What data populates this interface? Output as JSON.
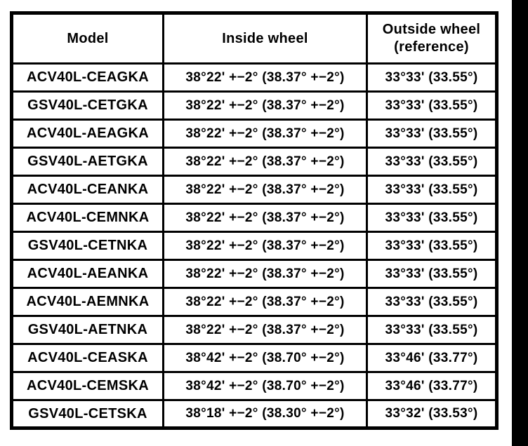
{
  "page": {
    "background_color": "#ffffff",
    "scan_bar_color": "#000000",
    "table_border_color": "#000000"
  },
  "table": {
    "columns": [
      {
        "label": "Model"
      },
      {
        "label": "Inside wheel"
      },
      {
        "label": "Outside wheel (reference)"
      }
    ],
    "rows": [
      {
        "model": "ACV40L-CEAGKA",
        "inside_wheel": "38°22' +−2° (38.37° +−2°)",
        "outside_wheel": "33°33' (33.55°)"
      },
      {
        "model": "GSV40L-CETGKA",
        "inside_wheel": "38°22' +−2° (38.37° +−2°)",
        "outside_wheel": "33°33' (33.55°)"
      },
      {
        "model": "ACV40L-AEAGKA",
        "inside_wheel": "38°22' +−2° (38.37° +−2°)",
        "outside_wheel": "33°33' (33.55°)"
      },
      {
        "model": "GSV40L-AETGKA",
        "inside_wheel": "38°22' +−2° (38.37° +−2°)",
        "outside_wheel": "33°33' (33.55°)"
      },
      {
        "model": "ACV40L-CEANKA",
        "inside_wheel": "38°22' +−2° (38.37° +−2°)",
        "outside_wheel": "33°33' (33.55°)"
      },
      {
        "model": "ACV40L-CEMNKA",
        "inside_wheel": "38°22' +−2° (38.37° +−2°)",
        "outside_wheel": "33°33' (33.55°)"
      },
      {
        "model": "GSV40L-CETNKA",
        "inside_wheel": "38°22' +−2° (38.37° +−2°)",
        "outside_wheel": "33°33' (33.55°)"
      },
      {
        "model": "ACV40L-AEANKA",
        "inside_wheel": "38°22' +−2° (38.37° +−2°)",
        "outside_wheel": "33°33' (33.55°)"
      },
      {
        "model": "ACV40L-AEMNKA",
        "inside_wheel": "38°22' +−2° (38.37° +−2°)",
        "outside_wheel": "33°33' (33.55°)"
      },
      {
        "model": "GSV40L-AETNKA",
        "inside_wheel": "38°22' +−2° (38.37° +−2°)",
        "outside_wheel": "33°33' (33.55°)"
      },
      {
        "model": "ACV40L-CEASKA",
        "inside_wheel": "38°42' +−2° (38.70° +−2°)",
        "outside_wheel": "33°46' (33.77°)"
      },
      {
        "model": "ACV40L-CEMSKA",
        "inside_wheel": "38°42' +−2° (38.70° +−2°)",
        "outside_wheel": "33°46' (33.77°)"
      },
      {
        "model": "GSV40L-CETSKA",
        "inside_wheel": "38°18' +−2° (38.30° +−2°)",
        "outside_wheel": "33°32' (33.53°)"
      }
    ]
  }
}
